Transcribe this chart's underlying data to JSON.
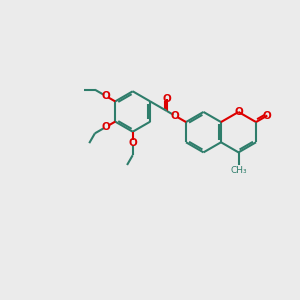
{
  "bg_color": "#EBEBEB",
  "bond_color": "#2E7D6B",
  "oxygen_color": "#DD0000",
  "lw": 1.5,
  "figsize": [
    3.0,
    3.0
  ],
  "dpi": 100,
  "xlim": [
    0,
    10
  ],
  "ylim": [
    0,
    10
  ]
}
